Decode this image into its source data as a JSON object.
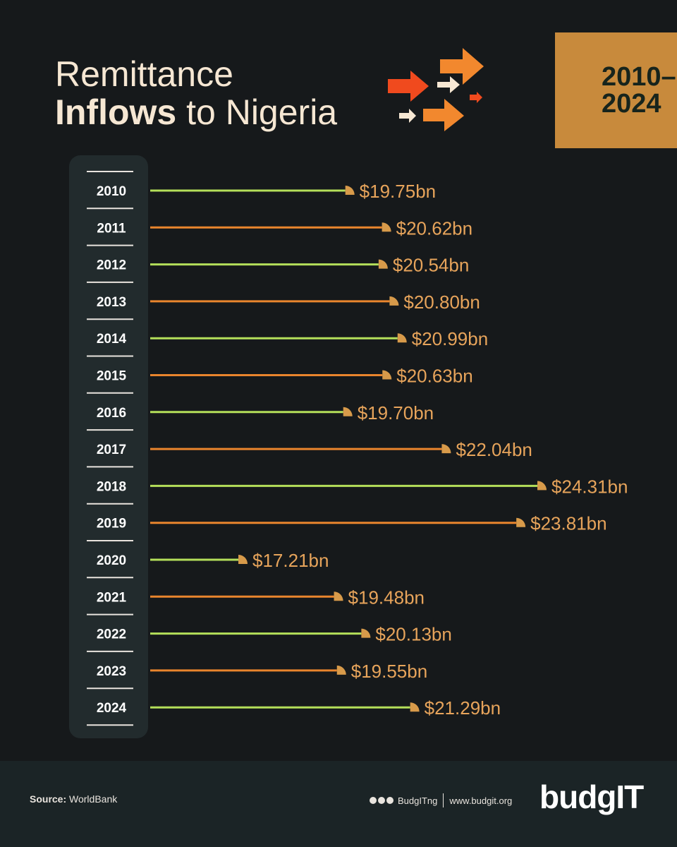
{
  "header": {
    "title_line1": "Remittance",
    "title_line2_bold": "Inflows",
    "title_line2_rest": "to Nigeria",
    "badge_line1": "2010–",
    "badge_line2": "2024"
  },
  "chart_data": {
    "type": "bar",
    "orientation": "horizontal",
    "categories": [
      "2010",
      "2011",
      "2012",
      "2013",
      "2014",
      "2015",
      "2016",
      "2017",
      "2018",
      "2019",
      "2020",
      "2021",
      "2022",
      "2023",
      "2024"
    ],
    "values": [
      19.75,
      20.62,
      20.54,
      20.8,
      20.99,
      20.63,
      19.7,
      22.04,
      24.31,
      23.81,
      17.21,
      19.48,
      20.13,
      19.55,
      21.29
    ],
    "labels": [
      "$19.75bn",
      "$20.62bn",
      "$20.54bn",
      "$20.80bn",
      "$20.99bn",
      "$20.63bn",
      "$19.70bn",
      "$22.04bn",
      "$24.31bn",
      "$23.81bn",
      "$17.21bn",
      "$19.48bn",
      "$20.13bn",
      "$19.55bn",
      "$21.29bn"
    ],
    "unit": "USD billion",
    "colors": {
      "odd": "#b4df5a",
      "even": "#e9852d",
      "marker": "#d79a4a",
      "label": "#e7a45b"
    }
  },
  "footer": {
    "source_label": "Source:",
    "source_value": "WorldBank",
    "handle": "BudgITng",
    "website": "www.budgit.org",
    "logo": "budgIT"
  }
}
